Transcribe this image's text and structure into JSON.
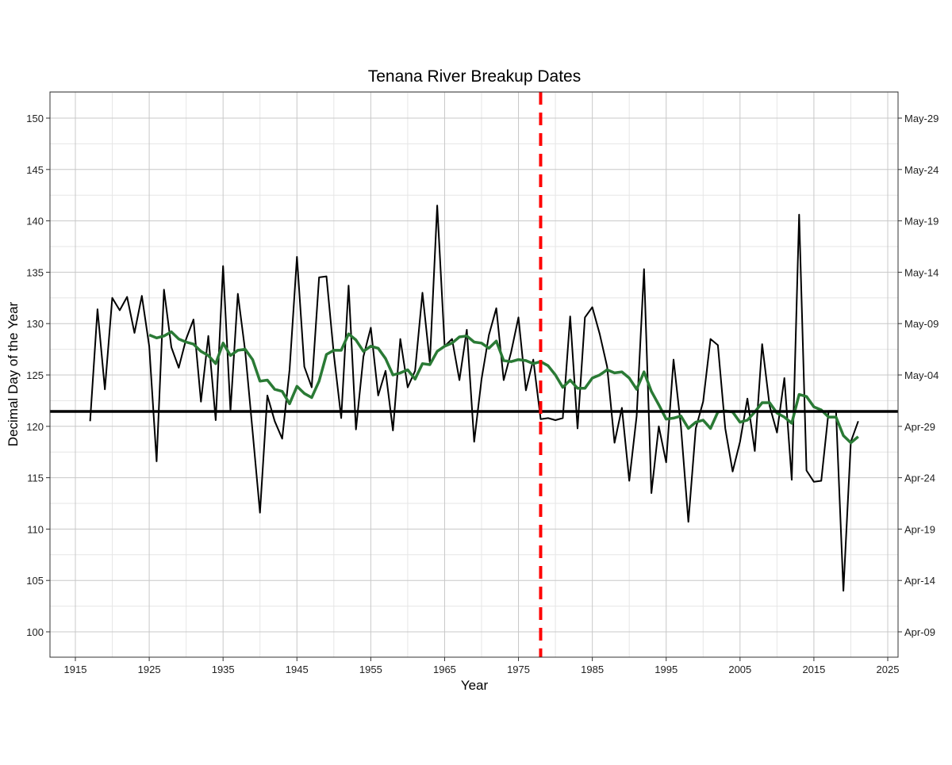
{
  "chart_data": {
    "type": "line",
    "title": "Tenana River Breakup Dates",
    "xlabel": "Year",
    "ylabel": "Decimal Day of the Year",
    "xlim": [
      1912,
      2027
    ],
    "ylim": [
      97.5,
      152.5
    ],
    "x_ticks": [
      1915,
      1925,
      1935,
      1945,
      1955,
      1965,
      1975,
      1985,
      1995,
      2005,
      2015,
      2025
    ],
    "y_ticks": [
      100,
      105,
      110,
      115,
      120,
      125,
      130,
      135,
      140,
      145,
      150
    ],
    "y2_ticks": [
      {
        "value": 100,
        "label": "Apr-09"
      },
      {
        "value": 105,
        "label": "Apr-14"
      },
      {
        "value": 110,
        "label": "Apr-19"
      },
      {
        "value": 115,
        "label": "Apr-24"
      },
      {
        "value": 120,
        "label": "Apr-29"
      },
      {
        "value": 125,
        "label": "May-04"
      },
      {
        "value": 130,
        "label": "May-09"
      },
      {
        "value": 135,
        "label": "May-14"
      },
      {
        "value": 140,
        "label": "May-19"
      },
      {
        "value": 145,
        "label": "May-24"
      },
      {
        "value": 150,
        "label": "May-29"
      }
    ],
    "grid": true,
    "series": [
      {
        "color": "#000000",
        "x_start": 1917,
        "values": [
          120.5,
          131.4,
          123.6,
          132.5,
          131.3,
          132.6,
          129.1,
          132.7,
          127.8,
          116.6,
          133.3,
          127.7,
          125.7,
          128.5,
          130.4,
          122.4,
          128.8,
          120.6,
          135.6,
          121.5,
          132.9,
          127.3,
          119.5,
          111.6,
          123.0,
          120.5,
          118.8,
          125.5,
          136.5,
          125.8,
          123.8,
          134.5,
          134.6,
          127.0,
          120.8,
          133.7,
          119.7,
          126.8,
          129.6,
          123.0,
          125.4,
          119.6,
          128.5,
          123.8,
          125.4,
          133.0,
          126.2,
          141.5,
          127.8,
          128.5,
          124.5,
          129.4,
          118.5,
          124.6,
          128.9,
          131.5,
          124.5,
          127.2,
          130.6,
          123.5,
          126.5,
          120.7,
          120.8,
          120.6,
          120.8,
          130.7,
          119.8,
          130.6,
          131.6,
          129.0,
          125.8,
          118.4,
          121.8,
          114.7,
          121.0,
          135.3,
          113.5,
          120.0,
          116.5,
          126.5,
          120.0,
          110.7,
          119.8,
          122.4,
          128.5,
          127.9,
          119.8,
          115.6,
          118.5,
          122.7,
          117.6,
          128.0,
          122.0,
          119.4,
          124.7,
          114.8,
          140.6,
          115.7,
          114.6,
          114.7,
          121.5,
          121.5,
          104.0,
          118.5,
          120.5
        ]
      },
      {
        "color": "#2a7a35",
        "x_start": 1925,
        "values": [
          128.9,
          128.6,
          128.8,
          129.2,
          128.5,
          128.2,
          128.0,
          127.3,
          126.9,
          126.1,
          128.1,
          126.9,
          127.4,
          127.5,
          126.5,
          124.4,
          124.5,
          123.6,
          123.4,
          122.2,
          123.9,
          123.2,
          122.8,
          124.4,
          127.0,
          127.4,
          127.4,
          129.0,
          128.4,
          127.3,
          127.8,
          127.6,
          126.6,
          125.0,
          125.2,
          125.5,
          124.6,
          126.1,
          126.0,
          127.3,
          127.8,
          128.1,
          128.7,
          128.8,
          128.2,
          128.1,
          127.6,
          128.3,
          126.4,
          126.3,
          126.5,
          126.4,
          126.1,
          126.3,
          125.9,
          125.0,
          123.8,
          124.5,
          123.7,
          123.7,
          124.7,
          125.0,
          125.5,
          125.2,
          125.3,
          124.7,
          123.6,
          125.3,
          123.4,
          122.1,
          120.7,
          120.8,
          121.0,
          119.8,
          120.4,
          120.6,
          119.8,
          121.4,
          121.5,
          121.4,
          120.4,
          120.6,
          121.4,
          122.3,
          122.3,
          121.3,
          120.9,
          120.3,
          123.1,
          122.9,
          121.9,
          121.6,
          120.9,
          120.9,
          119.1,
          118.4,
          119.0
        ]
      }
    ],
    "hline": {
      "value": 121.45,
      "color": "#000000"
    },
    "vline": {
      "value": 1978,
      "color": "#ff0000",
      "style": "dashed"
    }
  }
}
